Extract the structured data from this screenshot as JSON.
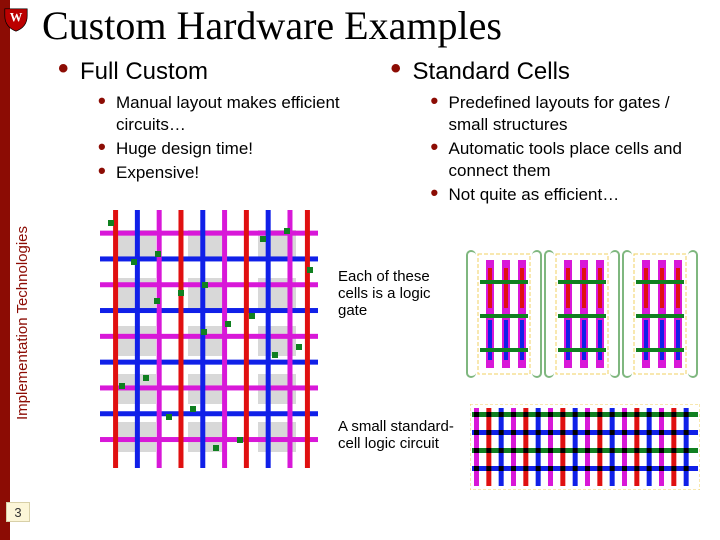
{
  "title": "Custom Hardware Examples",
  "sidebar_text": "Implementation Technologies",
  "slide_number": "3",
  "left": {
    "heading": "Full Custom",
    "items": [
      "Manual layout makes efficient circuits…",
      "Huge design time!",
      "Expensive!"
    ]
  },
  "right": {
    "heading": "Standard Cells",
    "items": [
      "Predefined layouts for gates / small structures",
      "Automatic tools place cells and connect them",
      "Not quite as efficient…"
    ]
  },
  "caption1": "Each of these cells is a logic gate",
  "caption2": "A small standard-cell logic circuit",
  "colors": {
    "brand_red": "#8c0c04",
    "route_blue": "#1020e8",
    "route_red": "#e01010",
    "route_magenta": "#d818d8",
    "route_green": "#108020",
    "bg_gray": "#d8d8d8"
  },
  "diagram1": {
    "type": "vlsi-layout",
    "cols": 10,
    "rows": 14,
    "h_tracks": [
      0.08,
      0.18,
      0.28,
      0.38,
      0.48,
      0.58,
      0.68,
      0.78,
      0.88
    ],
    "v_tracks": [
      0.06,
      0.16,
      0.26,
      0.36,
      0.46,
      0.56,
      0.66,
      0.76,
      0.86,
      0.94
    ]
  },
  "cells": {
    "count": 3,
    "inner_cols": 3,
    "inner_rows": 6
  },
  "diagram2": {
    "type": "standard-cell-row",
    "cols": 18,
    "rows": 4
  }
}
